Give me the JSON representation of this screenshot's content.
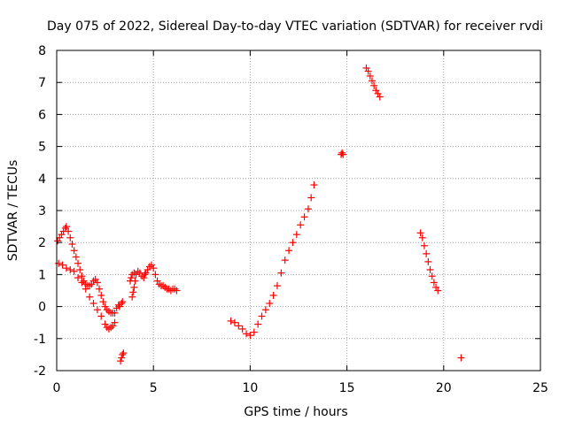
{
  "chart_data": {
    "type": "scatter",
    "title": "Day 075 of 2022, Sidereal Day-to-day VTEC variation (SDTVAR) for receiver rvdi",
    "xlabel": "GPS time / hours",
    "ylabel": "SDTVAR / TECUs",
    "xlim": [
      0,
      25
    ],
    "ylim": [
      -2,
      8
    ],
    "xticks": [
      "0",
      "5",
      "10",
      "15",
      "20",
      "25"
    ],
    "yticks": [
      "-2",
      "-1",
      "0",
      "1",
      "2",
      "3",
      "4",
      "5",
      "6",
      "7",
      "8"
    ],
    "grid": true,
    "marker": "+",
    "series": [
      {
        "name": "SDTVAR",
        "color": "#ff0000",
        "points": [
          [
            0.05,
            2.05
          ],
          [
            0.15,
            2.15
          ],
          [
            0.25,
            2.25
          ],
          [
            0.35,
            2.35
          ],
          [
            0.45,
            2.45
          ],
          [
            0.5,
            2.5
          ],
          [
            0.6,
            2.35
          ],
          [
            0.7,
            2.15
          ],
          [
            0.8,
            1.95
          ],
          [
            0.9,
            1.75
          ],
          [
            1.0,
            1.55
          ],
          [
            1.1,
            1.35
          ],
          [
            1.2,
            1.15
          ],
          [
            1.3,
            0.95
          ],
          [
            1.4,
            0.8
          ],
          [
            1.5,
            0.7
          ],
          [
            1.6,
            0.65
          ],
          [
            1.7,
            0.65
          ],
          [
            1.8,
            0.7
          ],
          [
            1.9,
            0.8
          ],
          [
            2.0,
            0.85
          ],
          [
            2.1,
            0.75
          ],
          [
            2.2,
            0.55
          ],
          [
            2.3,
            0.35
          ],
          [
            2.4,
            0.15
          ],
          [
            2.5,
            0.0
          ],
          [
            2.6,
            -0.1
          ],
          [
            2.7,
            -0.15
          ],
          [
            2.8,
            -0.2
          ],
          [
            2.9,
            -0.2
          ],
          [
            3.0,
            -0.2
          ],
          [
            3.1,
            -0.05
          ],
          [
            3.2,
            0.05
          ],
          [
            0.1,
            1.35
          ],
          [
            0.3,
            1.3
          ],
          [
            0.5,
            1.2
          ],
          [
            0.7,
            1.15
          ],
          [
            0.9,
            1.1
          ],
          [
            1.1,
            0.9
          ],
          [
            1.3,
            0.75
          ],
          [
            1.5,
            0.55
          ],
          [
            1.7,
            0.3
          ],
          [
            1.9,
            0.1
          ],
          [
            2.1,
            -0.1
          ],
          [
            2.3,
            -0.3
          ],
          [
            2.5,
            -0.55
          ],
          [
            2.6,
            -0.65
          ],
          [
            2.7,
            -0.7
          ],
          [
            2.8,
            -0.65
          ],
          [
            2.9,
            -0.6
          ],
          [
            3.0,
            -0.5
          ],
          [
            3.25,
            0.0
          ],
          [
            3.35,
            0.1
          ],
          [
            3.4,
            0.15
          ],
          [
            3.3,
            -1.7
          ],
          [
            3.35,
            -1.6
          ],
          [
            3.4,
            -1.5
          ],
          [
            3.45,
            -1.45
          ],
          [
            3.9,
            0.3
          ],
          [
            3.95,
            0.45
          ],
          [
            4.0,
            0.6
          ],
          [
            4.05,
            0.8
          ],
          [
            4.1,
            1.0
          ],
          [
            4.2,
            1.1
          ],
          [
            4.3,
            1.05
          ],
          [
            4.4,
            0.95
          ],
          [
            4.5,
            0.9
          ],
          [
            4.55,
            1.0
          ],
          [
            4.6,
            1.05
          ],
          [
            4.7,
            1.15
          ],
          [
            4.8,
            1.25
          ],
          [
            4.9,
            1.3
          ],
          [
            5.0,
            1.2
          ],
          [
            5.1,
            1.0
          ],
          [
            5.2,
            0.8
          ],
          [
            5.3,
            0.7
          ],
          [
            5.4,
            0.65
          ],
          [
            5.5,
            0.65
          ],
          [
            5.6,
            0.6
          ],
          [
            5.7,
            0.55
          ],
          [
            5.8,
            0.55
          ],
          [
            5.9,
            0.5
          ],
          [
            6.0,
            0.55
          ],
          [
            6.1,
            0.55
          ],
          [
            6.2,
            0.5
          ],
          [
            3.8,
            0.8
          ],
          [
            3.85,
            0.9
          ],
          [
            3.9,
            1.0
          ],
          [
            4.0,
            1.05
          ],
          [
            9.0,
            -0.45
          ],
          [
            9.2,
            -0.5
          ],
          [
            9.4,
            -0.6
          ],
          [
            9.6,
            -0.7
          ],
          [
            9.8,
            -0.85
          ],
          [
            10.0,
            -0.9
          ],
          [
            10.2,
            -0.8
          ],
          [
            10.4,
            -0.55
          ],
          [
            10.6,
            -0.3
          ],
          [
            10.8,
            -0.1
          ],
          [
            11.0,
            0.1
          ],
          [
            11.2,
            0.35
          ],
          [
            11.4,
            0.65
          ],
          [
            11.6,
            1.05
          ],
          [
            11.8,
            1.45
          ],
          [
            12.0,
            1.75
          ],
          [
            12.2,
            2.0
          ],
          [
            12.4,
            2.25
          ],
          [
            12.6,
            2.55
          ],
          [
            12.8,
            2.8
          ],
          [
            13.0,
            3.05
          ],
          [
            13.15,
            3.4
          ],
          [
            13.3,
            3.8
          ],
          [
            14.7,
            4.75
          ],
          [
            14.75,
            4.8
          ],
          [
            14.8,
            4.75
          ],
          [
            16.0,
            7.45
          ],
          [
            16.1,
            7.35
          ],
          [
            16.2,
            7.2
          ],
          [
            16.3,
            7.05
          ],
          [
            16.4,
            6.9
          ],
          [
            16.5,
            6.75
          ],
          [
            16.6,
            6.65
          ],
          [
            16.7,
            6.55
          ],
          [
            18.8,
            2.3
          ],
          [
            18.9,
            2.15
          ],
          [
            19.0,
            1.9
          ],
          [
            19.1,
            1.65
          ],
          [
            19.2,
            1.4
          ],
          [
            19.3,
            1.15
          ],
          [
            19.4,
            0.95
          ],
          [
            19.5,
            0.75
          ],
          [
            19.6,
            0.6
          ],
          [
            19.7,
            0.5
          ],
          [
            20.9,
            -1.6
          ]
        ]
      }
    ]
  }
}
